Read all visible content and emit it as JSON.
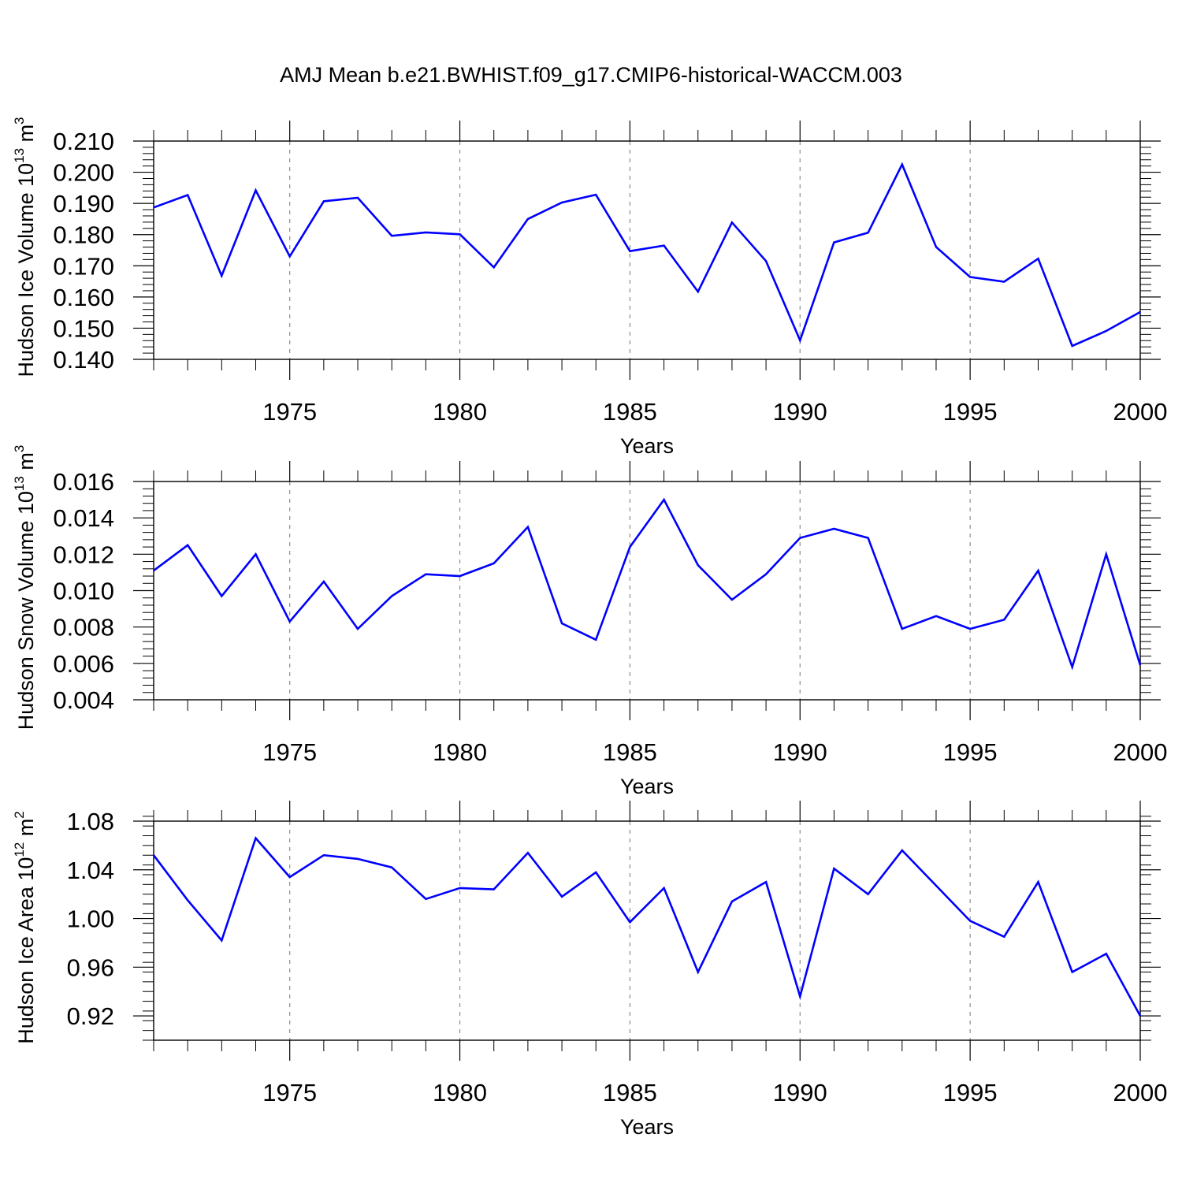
{
  "title": "AMJ Mean b.e21.BWHIST.f09_g17.CMIP6-historical-WACCM.003",
  "colors": {
    "line": "#0000ff",
    "axis": "#000000",
    "grid": "#8c8c8c"
  },
  "chart_data": [
    {
      "type": "line",
      "name": "ice-volume",
      "ylabel": "Hudson Ice Volume 10",
      "ylabel_sup": "13",
      "ylabel_unit": " m",
      "ylabel_unit_sup": "3",
      "xlabel": "Years",
      "xlim": [
        1971,
        2000
      ],
      "ylim": [
        0.14,
        0.21
      ],
      "y_major_ticks": [
        0.14,
        0.15,
        0.16,
        0.17,
        0.18,
        0.19,
        0.2,
        0.21
      ],
      "y_tick_labels": [
        "0.140",
        "0.150",
        "0.160",
        "0.170",
        "0.180",
        "0.190",
        "0.200",
        "0.210"
      ],
      "y_minor_step": 0.002,
      "x_major_ticks": [
        1975,
        1980,
        1985,
        1990,
        1995,
        2000
      ],
      "x_tick_labels": [
        "1975",
        "1980",
        "1985",
        "1990",
        "1995",
        "2000"
      ],
      "x_minor_step": 1,
      "grid": "dashed vertical at major x ticks",
      "x": [
        1971,
        1972,
        1973,
        1974,
        1975,
        1976,
        1977,
        1978,
        1979,
        1980,
        1981,
        1982,
        1983,
        1984,
        1985,
        1986,
        1987,
        1988,
        1989,
        1990,
        1991,
        1992,
        1993,
        1994,
        1995,
        1996,
        1997,
        1998,
        1999,
        2000
      ],
      "series": [
        {
          "name": "Hudson Ice Volume",
          "values": [
            0.1887,
            0.1927,
            0.1668,
            0.1942,
            0.173,
            0.1907,
            0.1918,
            0.1796,
            0.1807,
            0.1801,
            0.1695,
            0.185,
            0.1903,
            0.1928,
            0.1747,
            0.1765,
            0.1617,
            0.1839,
            0.1715,
            0.1461,
            0.1775,
            0.1806,
            0.2025,
            0.176,
            0.1664,
            0.1649,
            0.1723,
            0.1443,
            0.1491,
            0.1552
          ]
        }
      ]
    },
    {
      "type": "line",
      "name": "snow-volume",
      "ylabel": "Hudson Snow Volume 10",
      "ylabel_sup": "13",
      "ylabel_unit": " m",
      "ylabel_unit_sup": "3",
      "xlabel": "Years",
      "xlim": [
        1971,
        2000
      ],
      "ylim": [
        0.004,
        0.016
      ],
      "y_major_ticks": [
        0.004,
        0.006,
        0.008,
        0.01,
        0.012,
        0.014,
        0.016
      ],
      "y_tick_labels": [
        "0.004",
        "0.006",
        "0.008",
        "0.010",
        "0.012",
        "0.014",
        "0.016"
      ],
      "y_minor_step": 0.0004,
      "x_major_ticks": [
        1975,
        1980,
        1985,
        1990,
        1995,
        2000
      ],
      "x_tick_labels": [
        "1975",
        "1980",
        "1985",
        "1990",
        "1995",
        "2000"
      ],
      "x_minor_step": 1,
      "grid": "dashed vertical at major x ticks",
      "x": [
        1971,
        1972,
        1973,
        1974,
        1975,
        1976,
        1977,
        1978,
        1979,
        1980,
        1981,
        1982,
        1983,
        1984,
        1985,
        1986,
        1987,
        1988,
        1989,
        1990,
        1991,
        1992,
        1993,
        1994,
        1995,
        1996,
        1997,
        1998,
        1999,
        2000
      ],
      "series": [
        {
          "name": "Hudson Snow Volume",
          "values": [
            0.0111,
            0.0125,
            0.0097,
            0.012,
            0.0083,
            0.0105,
            0.0079,
            0.0097,
            0.0109,
            0.0108,
            0.0115,
            0.0135,
            0.0082,
            0.0073,
            0.0124,
            0.015,
            0.0114,
            0.0095,
            0.0109,
            0.0129,
            0.0134,
            0.0129,
            0.0079,
            0.0086,
            0.0079,
            0.0084,
            0.0111,
            0.0058,
            0.012,
            0.0059
          ]
        }
      ]
    },
    {
      "type": "line",
      "name": "ice-area",
      "ylabel": "Hudson Ice Area 10",
      "ylabel_sup": "12",
      "ylabel_unit": " m",
      "ylabel_unit_sup": "2",
      "xlabel": "Years",
      "xlim": [
        1971,
        2000
      ],
      "ylim": [
        0.9,
        1.08
      ],
      "y_major_ticks": [
        0.92,
        0.96,
        1.0,
        1.04,
        1.08
      ],
      "y_tick_labels": [
        "0.92",
        "0.96",
        "1.00",
        "1.04",
        "1.08"
      ],
      "y_minor_step": 0.008,
      "x_major_ticks": [
        1975,
        1980,
        1985,
        1990,
        1995,
        2000
      ],
      "x_tick_labels": [
        "1975",
        "1980",
        "1985",
        "1990",
        "1995",
        "2000"
      ],
      "x_minor_step": 1,
      "grid": "dashed vertical at major x ticks",
      "x": [
        1971,
        1972,
        1973,
        1974,
        1975,
        1976,
        1977,
        1978,
        1979,
        1980,
        1981,
        1982,
        1983,
        1984,
        1985,
        1986,
        1987,
        1988,
        1989,
        1990,
        1991,
        1992,
        1993,
        1994,
        1995,
        1996,
        1997,
        1998,
        1999,
        2000
      ],
      "series": [
        {
          "name": "Hudson Ice Area",
          "values": [
            1.052,
            1.015,
            0.982,
            1.066,
            1.034,
            1.052,
            1.049,
            1.042,
            1.016,
            1.025,
            1.024,
            1.054,
            1.018,
            1.038,
            0.997,
            1.025,
            0.956,
            1.014,
            1.03,
            0.936,
            1.041,
            1.02,
            1.056,
            1.027,
            0.998,
            0.985,
            1.03,
            0.956,
            0.971,
            0.92
          ]
        }
      ]
    }
  ]
}
